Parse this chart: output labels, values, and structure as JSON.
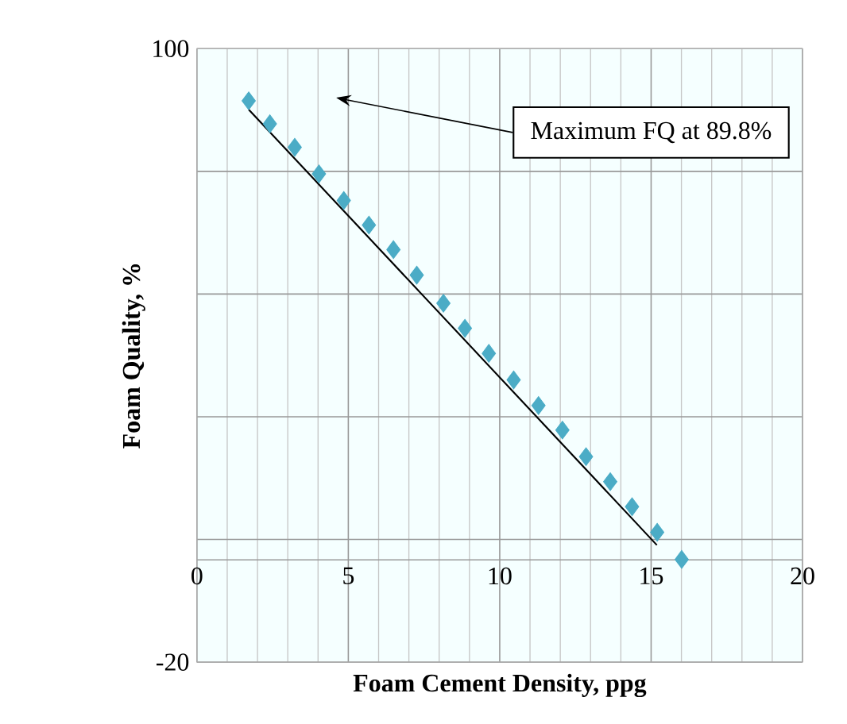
{
  "chart_data": {
    "type": "scatter",
    "xlabel": "Foam Cement Density, ppg",
    "ylabel": "Foam Quality, %",
    "annotations": [
      "Maximum  FQ at 89.8%"
    ],
    "xlim": [
      0,
      20
    ],
    "ylim": [
      -20,
      100
    ],
    "xticks": [
      0,
      5,
      10,
      15,
      20
    ],
    "yticks": [
      -20,
      {
        "value": 0,
        "label": null
      },
      {
        "value": 4,
        "label": null
      },
      {
        "value": 28,
        "label": null
      },
      {
        "value": 52,
        "label": null
      },
      {
        "value": 76,
        "label": null
      },
      100
    ],
    "grid": true,
    "marker": "diamond",
    "series": [
      {
        "color": "#4bacc6",
        "x": [
          1.71,
          2.41,
          3.23,
          4.03,
          4.85,
          5.68,
          6.49,
          7.26,
          8.14,
          8.85,
          9.64,
          10.46,
          11.28,
          12.07,
          12.85,
          13.65,
          14.37,
          15.2,
          16.01
        ],
        "values": [
          89.8,
          85.3,
          80.7,
          75.5,
          70.3,
          65.5,
          60.7,
          55.7,
          50.2,
          45.3,
          40.4,
          35.2,
          30.2,
          25.4,
          20.2,
          15.3,
          10.4,
          5.4,
          0.1
        ]
      },
      {
        "type": "line",
        "color": "#000000",
        "marker": "none",
        "x": [
          1.71,
          15.19
        ],
        "values": [
          88.1,
          2.9
        ]
      }
    ]
  }
}
